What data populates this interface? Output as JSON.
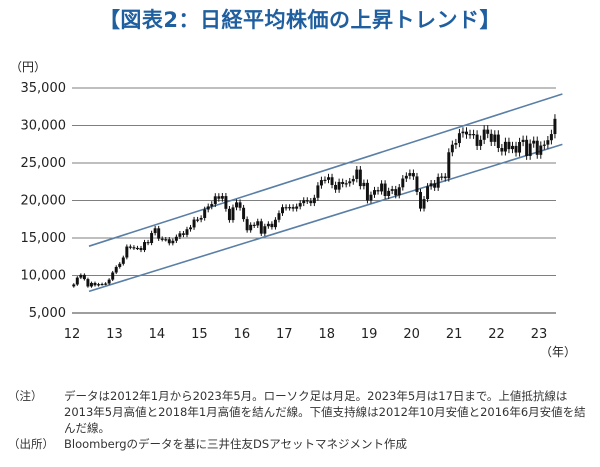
{
  "title": "【図表2：日経平均株価の上昇トレンド】",
  "chart_data": {
    "type": "candlestick",
    "yunit": "（円）",
    "xunit": "（年）",
    "ylim": [
      5000,
      35000
    ],
    "yticks": [
      "5,000",
      "10,000",
      "15,000",
      "20,000",
      "25,000",
      "30,000",
      "35,000"
    ],
    "yvalues": [
      5000,
      10000,
      15000,
      20000,
      25000,
      30000,
      35000
    ],
    "xticks": [
      "12",
      "13",
      "14",
      "15",
      "16",
      "17",
      "18",
      "19",
      "20",
      "21",
      "22",
      "23"
    ],
    "xlim": [
      2012.0,
      2023.4
    ],
    "grid": "horizontal",
    "monthly_close": [
      8800,
      9720,
      10080,
      9520,
      8540,
      9010,
      8700,
      8840,
      8870,
      8930,
      9450,
      10400,
      11140,
      11560,
      12400,
      13860,
      13770,
      13680,
      13670,
      13390,
      14460,
      14330,
      15660,
      16290,
      14910,
      14840,
      14830,
      14300,
      14630,
      15160,
      15620,
      15420,
      16170,
      16410,
      17460,
      17450,
      17670,
      18800,
      19210,
      19520,
      20560,
      20240,
      20590,
      18890,
      17390,
      19080,
      19750,
      19030,
      17520,
      16030,
      16760,
      16670,
      17230,
      15580,
      16570,
      16890,
      16450,
      17430,
      18310,
      19110,
      19040,
      19120,
      18910,
      19200,
      19650,
      20030,
      19930,
      19650,
      20360,
      22010,
      22720,
      22760,
      23100,
      22070,
      21450,
      22470,
      22200,
      22300,
      22550,
      22870,
      24120,
      21920,
      22350,
      20010,
      20770,
      21390,
      21210,
      22260,
      20600,
      21280,
      21520,
      20700,
      21760,
      22930,
      23290,
      23660,
      23210,
      21140,
      18920,
      20190,
      21880,
      22290,
      21710,
      23140,
      23190,
      22980,
      26430,
      27440,
      27660,
      28970,
      29180,
      28810,
      28860,
      28790,
      27280,
      28090,
      29450,
      28890,
      27820,
      28790,
      27000,
      26530,
      27820,
      26850,
      27280,
      26390,
      27800,
      28090,
      25940,
      27590,
      27970,
      26090,
      27330,
      27450,
      28040,
      28860,
      30890
    ],
    "upper_line": {
      "label": "上値抵抗線",
      "points": [
        [
          2013.33,
          15600
        ],
        [
          2018.0,
          24100
        ]
      ],
      "range": [
        2012.4,
        2023.55
      ]
    },
    "lower_line": {
      "label": "下値支持線",
      "points": [
        [
          2012.75,
          8500
        ],
        [
          2016.42,
          14950
        ]
      ],
      "range": [
        2012.4,
        2023.55
      ]
    },
    "colors": {
      "candle": "#111111",
      "trend": "#5a7fa6",
      "grid": "#7f7f7f",
      "title": "#1f5f9f"
    }
  },
  "notes": [
    {
      "label": "（注）",
      "text": "データは2012年1月から2023年5月。ローソク足は月足。2023年5月は17日まで。上値抵抗線は2013年5月高値と2018年1月高値を結んだ線。下値支持線は2012年10月安値と2016年6月安値を結んだ線。"
    },
    {
      "label": "（出所）",
      "text": "Bloombergのデータを基に三井住友DSアセットマネジメント作成"
    }
  ]
}
